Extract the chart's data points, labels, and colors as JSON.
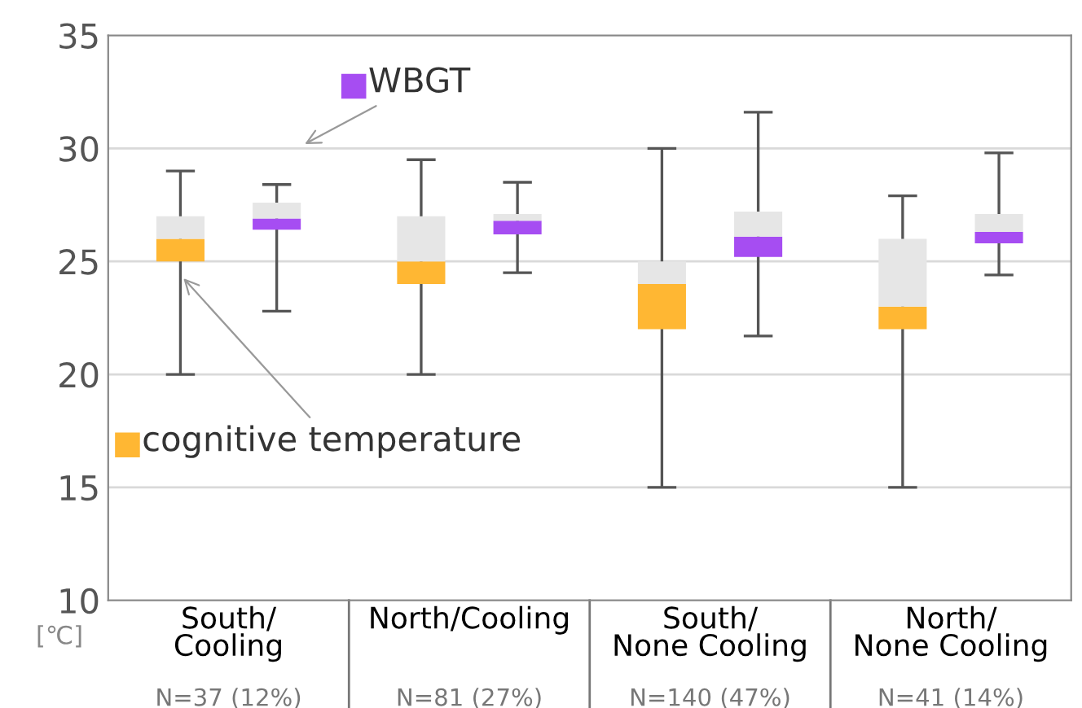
{
  "chart_data": {
    "type": "box",
    "ylabel": "[℃]",
    "categories": [
      "South/\nCooling\nN=37 (12%)",
      "North/Cooling\nN=81 (27%)",
      "South/\nNone Cooling\nN=140 (47%)",
      "North/\nNone Cooling\nN=41 (14%)"
    ],
    "series": [
      {
        "name": "cognitive temperature",
        "color": "#ffb733",
        "boxes": [
          {
            "low": 20,
            "q1": 25,
            "median": 26,
            "q3": 27,
            "high": 29
          },
          {
            "low": 20,
            "q1": 24,
            "median": 25,
            "q3": 27,
            "high": 29.5
          },
          {
            "low": 15,
            "q1": 22,
            "median": 24,
            "q3": 25,
            "high": 30
          },
          {
            "low": 15,
            "q1": 22,
            "median": 23,
            "q3": 26,
            "high": 27.9
          }
        ]
      },
      {
        "name": "WBGT",
        "color": "#a64df2",
        "boxes": [
          {
            "low": 22.8,
            "q1": 26.4,
            "median": 26.9,
            "q3": 27.6,
            "high": 28.4
          },
          {
            "low": 24.5,
            "q1": 26.2,
            "median": 26.8,
            "q3": 27.1,
            "high": 28.5
          },
          {
            "low": 21.7,
            "q1": 25.2,
            "median": 26.1,
            "q3": 27.2,
            "high": 31.6
          },
          {
            "low": 24.4,
            "q1": 25.8,
            "median": 26.3,
            "q3": 27.1,
            "high": 29.8
          }
        ]
      }
    ],
    "ylim": [
      10,
      35
    ],
    "yticks": [
      10,
      15,
      20,
      25,
      30,
      35
    ],
    "grid": "y",
    "legend": "top left"
  }
}
